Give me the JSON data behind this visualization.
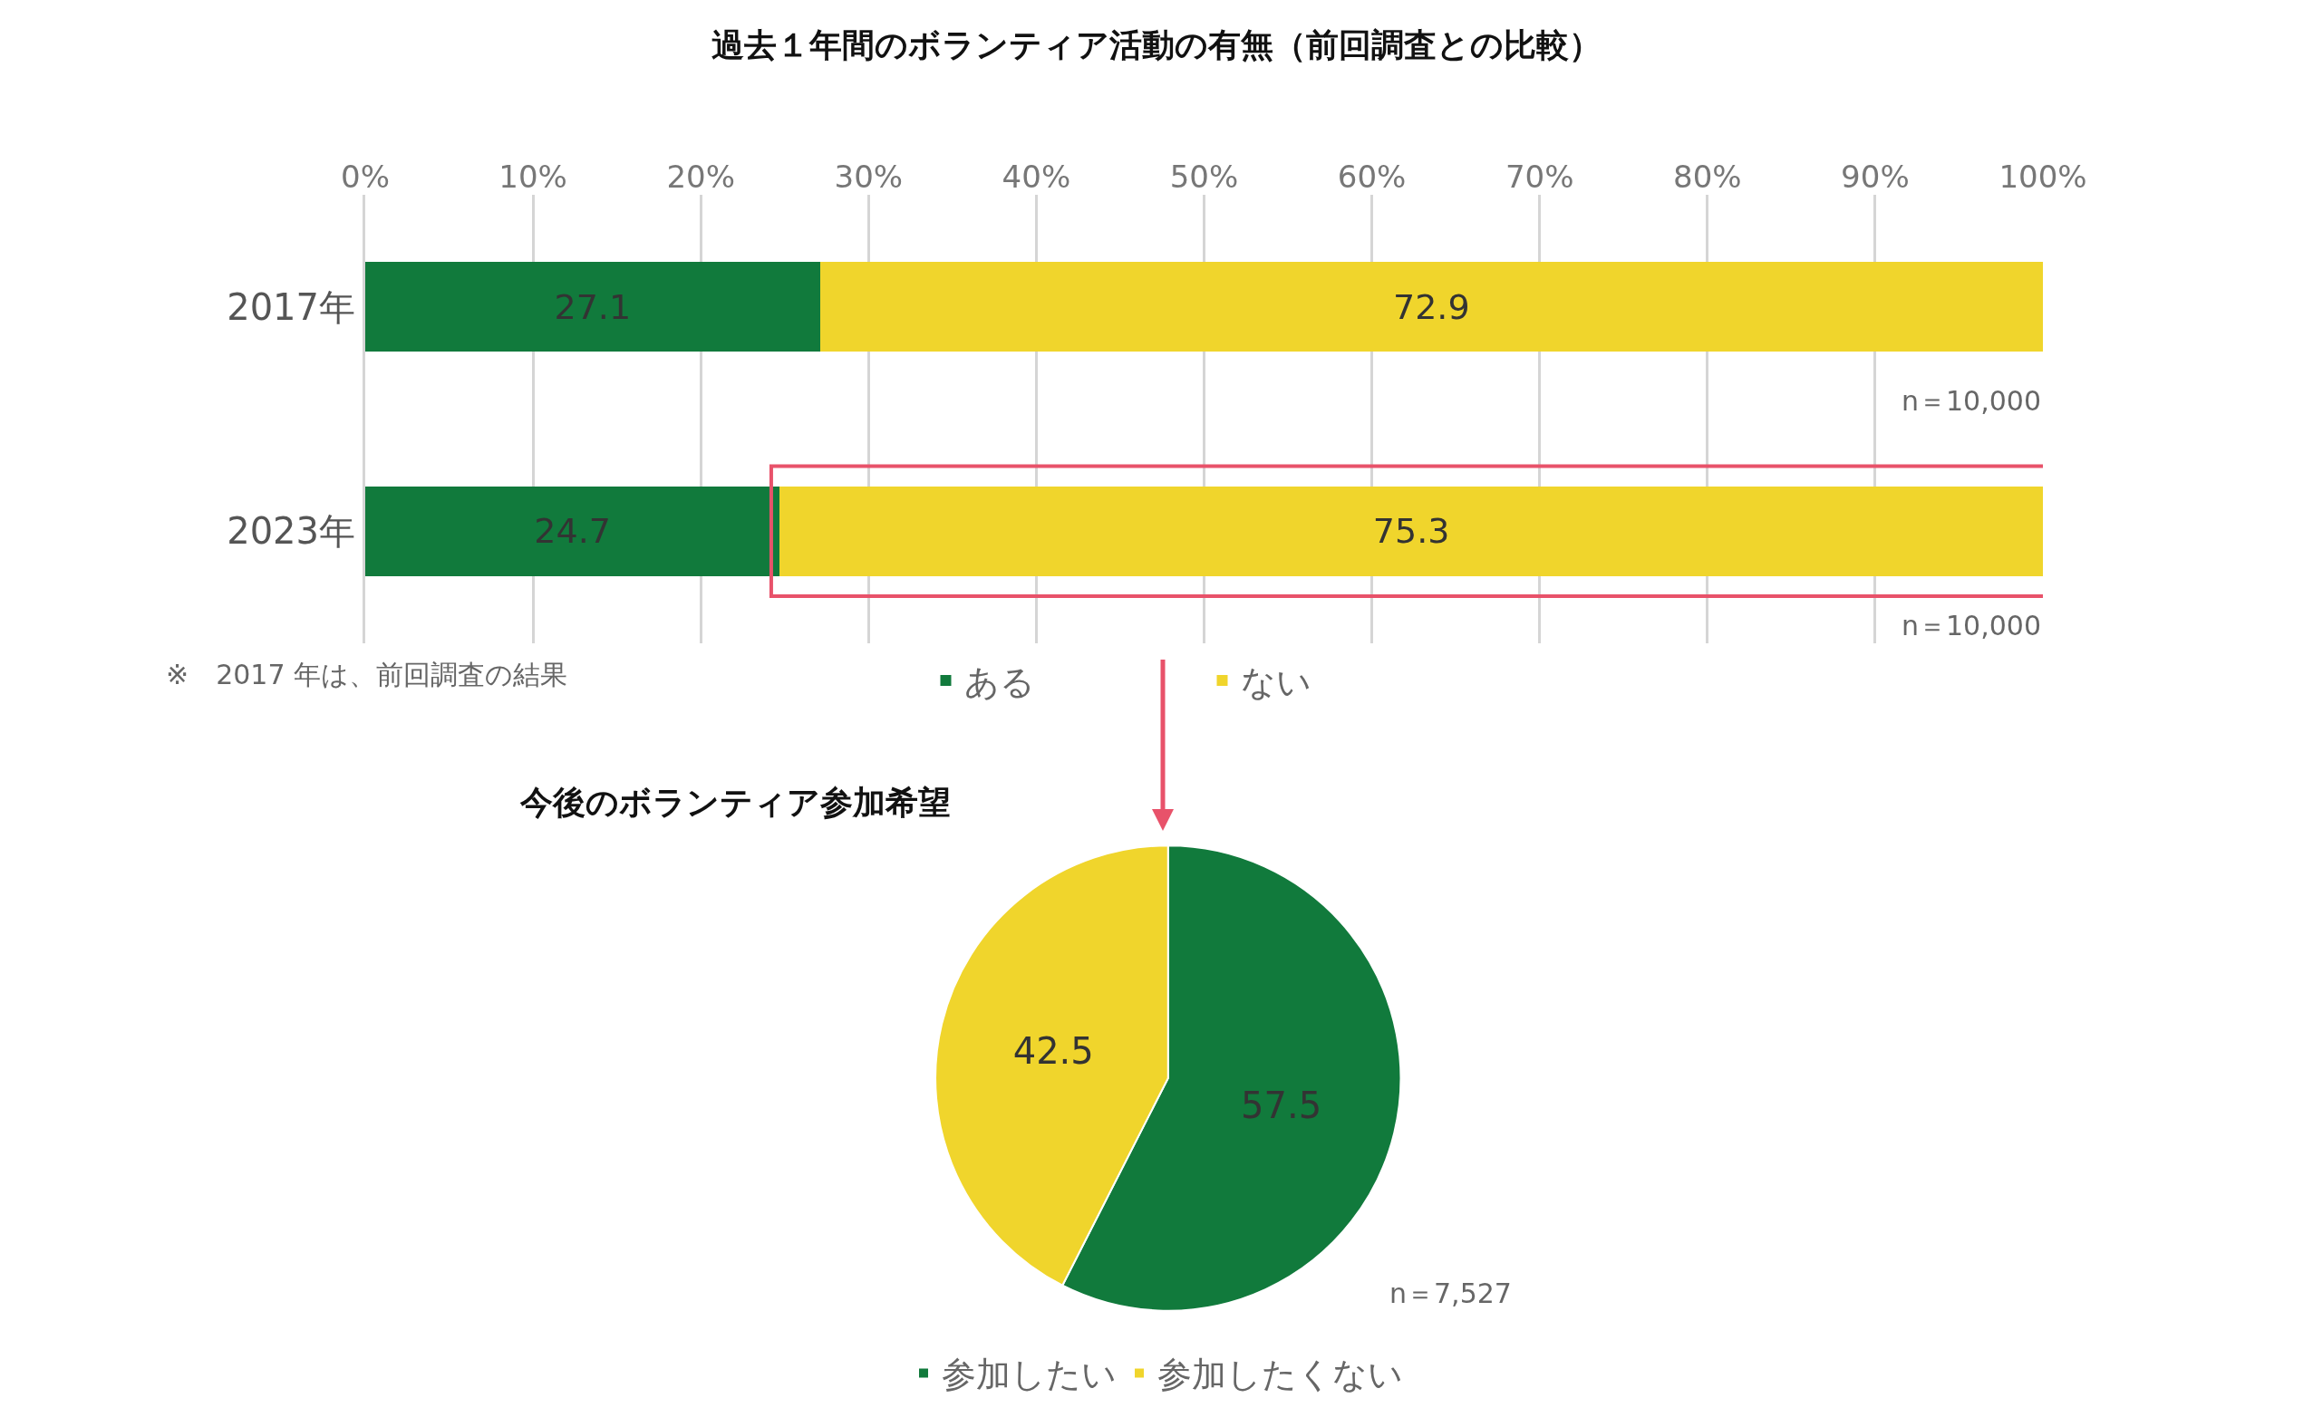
{
  "chart_data": [
    {
      "type": "bar",
      "orientation": "horizontal",
      "stacked": true,
      "title": "過去１年間のボランティア活動の有無（前回調査との比較）",
      "categories": [
        "2017年",
        "2023年"
      ],
      "series": [
        {
          "name": "ある",
          "color": "#117a3c",
          "values": [
            27.1,
            24.7
          ]
        },
        {
          "name": "ない",
          "color": "#f0d52c",
          "values": [
            72.9,
            75.3
          ]
        }
      ],
      "xlim": [
        0,
        100
      ],
      "xticks": [
        {
          "value": 0,
          "label": "0%"
        },
        {
          "value": 10,
          "label": "10%"
        },
        {
          "value": 20,
          "label": "20%"
        },
        {
          "value": 30,
          "label": "30%"
        },
        {
          "value": 40,
          "label": "40%"
        },
        {
          "value": 50,
          "label": "50%"
        },
        {
          "value": 60,
          "label": "60%"
        },
        {
          "value": 70,
          "label": "70%"
        },
        {
          "value": 80,
          "label": "80%"
        },
        {
          "value": 90,
          "label": "90%"
        },
        {
          "value": 100,
          "label": "100%"
        }
      ],
      "grid": "x",
      "legend": "bottom",
      "data_labels": true,
      "annotations": [
        {
          "text": "n＝10,000",
          "x": 100,
          "y": "2017年"
        },
        {
          "text": "n＝10,000",
          "x": 100,
          "y": "2023年"
        },
        "※　2017 年は、前回調査の結果"
      ]
    },
    {
      "type": "pie",
      "title": "今後のボランティア参加希望",
      "categories": [
        "参加したい",
        "参加したくない"
      ],
      "values": [
        57.5,
        42.5
      ],
      "colors": [
        "#117a3c",
        "#f0d52c"
      ],
      "data_labels": true,
      "legend": "bottom",
      "annotations": [
        "n＝7,527"
      ]
    }
  ]
}
